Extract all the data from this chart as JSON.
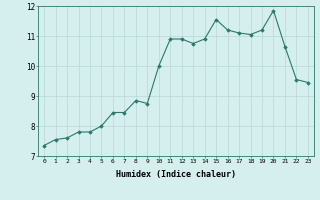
{
  "x": [
    0,
    1,
    2,
    3,
    4,
    5,
    6,
    7,
    8,
    9,
    10,
    11,
    12,
    13,
    14,
    15,
    16,
    17,
    18,
    19,
    20,
    21,
    22,
    23
  ],
  "y": [
    7.35,
    7.55,
    7.6,
    7.8,
    7.8,
    8.0,
    8.45,
    8.45,
    8.85,
    8.75,
    10.0,
    10.9,
    10.9,
    10.75,
    10.9,
    11.55,
    11.2,
    11.1,
    11.05,
    11.2,
    11.85,
    10.65,
    9.55,
    9.45
  ],
  "xlabel": "Humidex (Indice chaleur)",
  "xlim": [
    -0.5,
    23.5
  ],
  "ylim": [
    7,
    12
  ],
  "yticks": [
    7,
    8,
    9,
    10,
    11,
    12
  ],
  "xticks": [
    0,
    1,
    2,
    3,
    4,
    5,
    6,
    7,
    8,
    9,
    10,
    11,
    12,
    13,
    14,
    15,
    16,
    17,
    18,
    19,
    20,
    21,
    22,
    23
  ],
  "line_color": "#2a7a6a",
  "marker_color": "#2a7a6a",
  "bg_color": "#d5eeee",
  "grid_color": "#b8d8d8",
  "axes_color": "#2a7a6a"
}
